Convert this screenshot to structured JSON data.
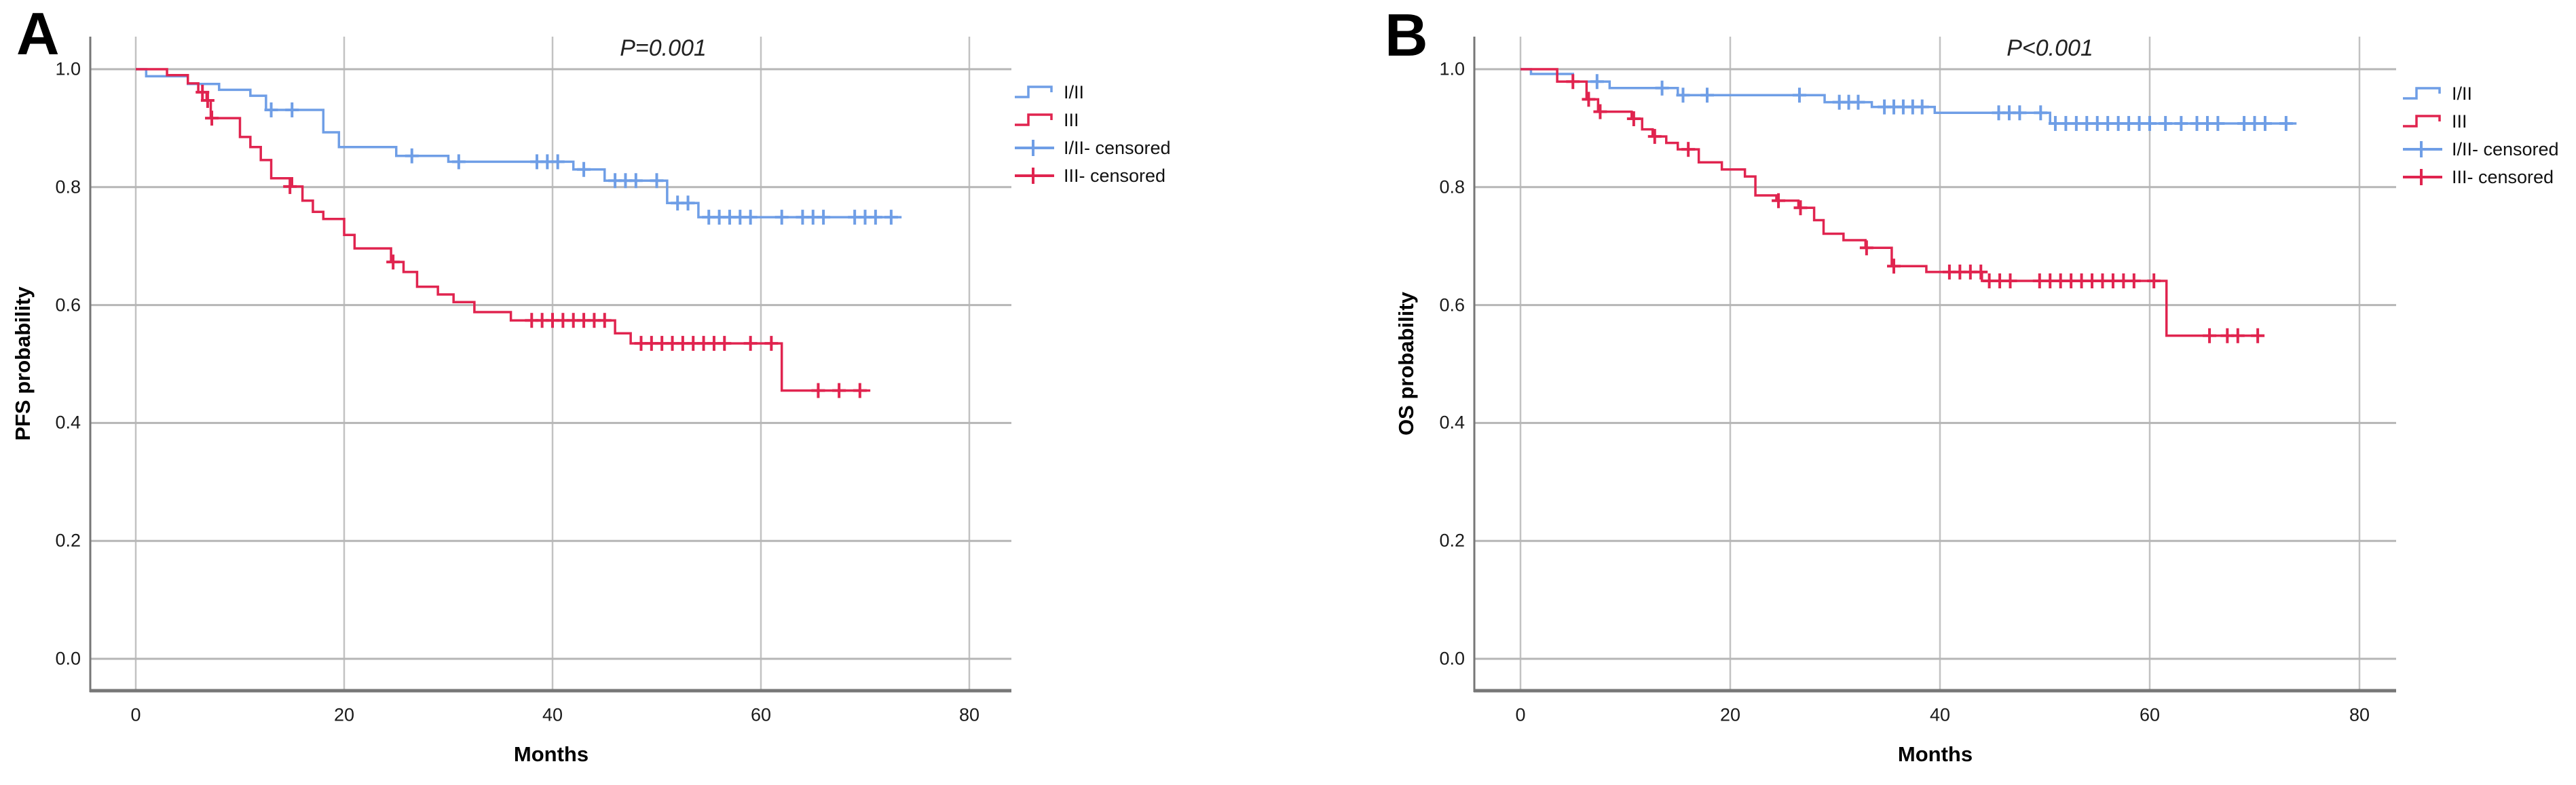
{
  "figure": {
    "background": "#ffffff"
  },
  "colors": {
    "group1": "#6f9ee6",
    "group2": "#e0244f",
    "grid_h": "#b6b6b6",
    "grid_v": "#c2c2c2",
    "axis": "#777777",
    "text": "#111111"
  },
  "chart_data": [
    {
      "id": "pfs",
      "type": "line",
      "subtype": "kaplan-meier-step",
      "panel_letter": "A",
      "p_value_label": "P=0.001",
      "title": "",
      "xlabel": "Months",
      "ylabel": "PFS probability",
      "x_ticks": [
        0,
        20,
        40,
        60,
        80
      ],
      "y_ticks": [
        "1.0",
        "0.8",
        "0.6",
        "0.4",
        "0.2",
        "0.0"
      ],
      "y_tick_values": [
        1.0,
        0.8,
        0.6,
        0.4,
        0.2,
        0.0
      ],
      "xlim": [
        -4.4,
        84
      ],
      "ylim": [
        -0.055,
        1.055
      ],
      "grid": true,
      "legend_position": "right",
      "legend": [
        {
          "label": "I/II",
          "color_key": "group1",
          "type": "step"
        },
        {
          "label": "III",
          "color_key": "group2",
          "type": "step"
        },
        {
          "label": "I/II- censored",
          "color_key": "group1",
          "type": "censor"
        },
        {
          "label": "III- censored",
          "color_key": "group2",
          "type": "censor"
        }
      ],
      "series": [
        {
          "name": "I/II",
          "color_key": "group1",
          "start_value": 1.0,
          "steps": [
            [
              1,
              0.988
            ],
            [
              5,
              0.975
            ],
            [
              8,
              0.965
            ],
            [
              11,
              0.955
            ],
            [
              12.5,
              0.931
            ],
            [
              18,
              0.893
            ],
            [
              19.5,
              0.868
            ],
            [
              25,
              0.853
            ],
            [
              30,
              0.843
            ],
            [
              42,
              0.83
            ],
            [
              45,
              0.811
            ],
            [
              51,
              0.773
            ],
            [
              54,
              0.749
            ]
          ],
          "end_month": 73.5,
          "censors": [
            [
              13,
              0.931
            ],
            [
              15,
              0.931
            ],
            [
              26.5,
              0.853
            ],
            [
              31,
              0.843
            ],
            [
              38.5,
              0.843
            ],
            [
              39.5,
              0.843
            ],
            [
              40.5,
              0.843
            ],
            [
              43,
              0.83
            ],
            [
              46,
              0.811
            ],
            [
              47,
              0.811
            ],
            [
              48,
              0.811
            ],
            [
              50,
              0.811
            ],
            [
              52,
              0.773
            ],
            [
              53,
              0.773
            ],
            [
              55,
              0.749
            ],
            [
              56,
              0.749
            ],
            [
              57,
              0.749
            ],
            [
              58,
              0.749
            ],
            [
              59,
              0.749
            ],
            [
              62,
              0.749
            ],
            [
              64,
              0.749
            ],
            [
              65,
              0.749
            ],
            [
              66,
              0.749
            ],
            [
              69,
              0.749
            ],
            [
              70,
              0.749
            ],
            [
              71,
              0.749
            ],
            [
              72.5,
              0.749
            ]
          ]
        },
        {
          "name": "III",
          "color_key": "group2",
          "start_value": 1.0,
          "steps": [
            [
              3,
              0.99
            ],
            [
              5,
              0.976
            ],
            [
              6,
              0.961
            ],
            [
              6.8,
              0.947
            ],
            [
              7.2,
              0.917
            ],
            [
              10,
              0.885
            ],
            [
              11,
              0.868
            ],
            [
              12,
              0.846
            ],
            [
              13,
              0.815
            ],
            [
              15,
              0.801
            ],
            [
              16,
              0.777
            ],
            [
              17,
              0.758
            ],
            [
              18,
              0.746
            ],
            [
              20,
              0.719
            ],
            [
              21,
              0.696
            ],
            [
              24.5,
              0.673
            ],
            [
              25.7,
              0.656
            ],
            [
              27,
              0.631
            ],
            [
              29,
              0.618
            ],
            [
              30.5,
              0.605
            ],
            [
              32.5,
              0.588
            ],
            [
              36,
              0.574
            ],
            [
              46,
              0.552
            ],
            [
              47.5,
              0.535
            ],
            [
              62,
              0.455
            ]
          ],
          "end_month": 70.5,
          "censors": [
            [
              6.4,
              0.961
            ],
            [
              6.9,
              0.947
            ],
            [
              7.3,
              0.917
            ],
            [
              14.8,
              0.801
            ],
            [
              24.7,
              0.673
            ],
            [
              38,
              0.574
            ],
            [
              39,
              0.574
            ],
            [
              40,
              0.574
            ],
            [
              41,
              0.574
            ],
            [
              42,
              0.574
            ],
            [
              43,
              0.574
            ],
            [
              44,
              0.574
            ],
            [
              45,
              0.574
            ],
            [
              48.5,
              0.535
            ],
            [
              49.5,
              0.535
            ],
            [
              50.5,
              0.535
            ],
            [
              51.5,
              0.535
            ],
            [
              52.5,
              0.535
            ],
            [
              53.5,
              0.535
            ],
            [
              54.5,
              0.535
            ],
            [
              55.5,
              0.535
            ],
            [
              56.5,
              0.535
            ],
            [
              59,
              0.535
            ],
            [
              61,
              0.535
            ],
            [
              65.5,
              0.455
            ],
            [
              67.5,
              0.455
            ],
            [
              69.5,
              0.455
            ]
          ]
        }
      ]
    },
    {
      "id": "os",
      "type": "line",
      "subtype": "kaplan-meier-step",
      "panel_letter": "B",
      "p_value_label": "P<0.001",
      "title": "",
      "xlabel": "Months",
      "ylabel": "OS probability",
      "x_ticks": [
        0,
        20,
        40,
        60,
        80
      ],
      "y_ticks": [
        "1.0",
        "0.8",
        "0.6",
        "0.4",
        "0.2",
        "0.0"
      ],
      "y_tick_values": [
        1.0,
        0.8,
        0.6,
        0.4,
        0.2,
        0.0
      ],
      "xlim": [
        -4.4,
        84
      ],
      "ylim": [
        -0.055,
        1.055
      ],
      "grid": true,
      "legend_position": "right",
      "legend": [
        {
          "label": "I/II",
          "color_key": "group1",
          "type": "step"
        },
        {
          "label": "III",
          "color_key": "group2",
          "type": "step"
        },
        {
          "label": "I/II- censored",
          "color_key": "group1",
          "type": "censor"
        },
        {
          "label": "III- censored",
          "color_key": "group2",
          "type": "censor"
        }
      ],
      "series": [
        {
          "name": "I/II",
          "color_key": "group1",
          "start_value": 1.0,
          "steps": [
            [
              1,
              0.992
            ],
            [
              5,
              0.979
            ],
            [
              8.5,
              0.968
            ],
            [
              15,
              0.956
            ],
            [
              29,
              0.944
            ],
            [
              33.5,
              0.936
            ],
            [
              39.5,
              0.926
            ],
            [
              50.5,
              0.908
            ]
          ],
          "end_month": 74,
          "censors": [
            [
              7.3,
              0.979
            ],
            [
              13.5,
              0.968
            ],
            [
              15.5,
              0.956
            ],
            [
              17.8,
              0.956
            ],
            [
              26.6,
              0.956
            ],
            [
              30.4,
              0.944
            ],
            [
              31.3,
              0.944
            ],
            [
              32.2,
              0.944
            ],
            [
              34.7,
              0.936
            ],
            [
              35.6,
              0.936
            ],
            [
              36.5,
              0.936
            ],
            [
              37.4,
              0.936
            ],
            [
              38.3,
              0.936
            ],
            [
              45.6,
              0.926
            ],
            [
              46.6,
              0.926
            ],
            [
              47.6,
              0.926
            ],
            [
              49.6,
              0.926
            ],
            [
              51,
              0.908
            ],
            [
              52,
              0.908
            ],
            [
              53,
              0.908
            ],
            [
              54,
              0.908
            ],
            [
              55,
              0.908
            ],
            [
              56,
              0.908
            ],
            [
              57,
              0.908
            ],
            [
              58,
              0.908
            ],
            [
              59,
              0.908
            ],
            [
              60,
              0.908
            ],
            [
              61.5,
              0.908
            ],
            [
              63,
              0.908
            ],
            [
              64.5,
              0.908
            ],
            [
              65.5,
              0.908
            ],
            [
              66.5,
              0.908
            ],
            [
              69,
              0.908
            ],
            [
              70,
              0.908
            ],
            [
              71,
              0.908
            ],
            [
              73,
              0.908
            ]
          ]
        },
        {
          "name": "III",
          "color_key": "group2",
          "start_value": 1.0,
          "steps": [
            [
              3.5,
              0.979
            ],
            [
              6.3,
              0.949
            ],
            [
              7.4,
              0.928
            ],
            [
              10.6,
              0.916
            ],
            [
              11.6,
              0.898
            ],
            [
              12.6,
              0.886
            ],
            [
              13.9,
              0.875
            ],
            [
              15,
              0.864
            ],
            [
              17,
              0.842
            ],
            [
              19.2,
              0.83
            ],
            [
              21.4,
              0.818
            ],
            [
              22.4,
              0.786
            ],
            [
              24.4,
              0.777
            ],
            [
              26.5,
              0.765
            ],
            [
              28,
              0.744
            ],
            [
              28.9,
              0.721
            ],
            [
              30.8,
              0.71
            ],
            [
              32.9,
              0.697
            ],
            [
              35.4,
              0.666
            ],
            [
              38.7,
              0.656
            ],
            [
              44,
              0.641
            ],
            [
              61.6,
              0.548
            ]
          ],
          "end_month": 70.7,
          "censors": [
            [
              5,
              0.979
            ],
            [
              6.5,
              0.949
            ],
            [
              7.6,
              0.928
            ],
            [
              10.8,
              0.916
            ],
            [
              12.8,
              0.886
            ],
            [
              16,
              0.864
            ],
            [
              24.6,
              0.777
            ],
            [
              26.7,
              0.765
            ],
            [
              33,
              0.697
            ],
            [
              35.6,
              0.666
            ],
            [
              40.9,
              0.656
            ],
            [
              41.9,
              0.656
            ],
            [
              42.9,
              0.656
            ],
            [
              43.9,
              0.656
            ],
            [
              44.7,
              0.641
            ],
            [
              45.7,
              0.641
            ],
            [
              46.7,
              0.641
            ],
            [
              49.5,
              0.641
            ],
            [
              50.5,
              0.641
            ],
            [
              51.5,
              0.641
            ],
            [
              52.5,
              0.641
            ],
            [
              53.5,
              0.641
            ],
            [
              54.5,
              0.641
            ],
            [
              55.5,
              0.641
            ],
            [
              56.5,
              0.641
            ],
            [
              57.5,
              0.641
            ],
            [
              58.5,
              0.641
            ],
            [
              60.4,
              0.641
            ],
            [
              65.7,
              0.548
            ],
            [
              67.4,
              0.548
            ],
            [
              68.4,
              0.548
            ],
            [
              70.3,
              0.548
            ]
          ]
        }
      ]
    }
  ]
}
